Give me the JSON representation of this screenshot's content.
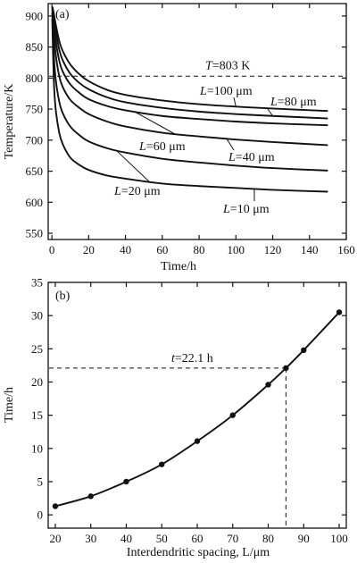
{
  "chart_data": [
    {
      "type": "line",
      "panel_label": "(a)",
      "xlabel": "Time/h",
      "ylabel": "Temperature/K",
      "xlim": [
        -2,
        160
      ],
      "ylim": [
        540,
        920
      ],
      "xticks": [
        0,
        20,
        40,
        60,
        80,
        100,
        120,
        140,
        160
      ],
      "yticks": [
        550,
        600,
        650,
        700,
        750,
        800,
        850,
        900
      ],
      "grid": false,
      "reference_line": {
        "axis": "y",
        "value": 803,
        "label": "T=803 K",
        "style": "dashed"
      },
      "series": [
        {
          "name": "L=100 μm",
          "x": [
            0.2,
            1,
            2,
            4,
            6,
            10,
            15,
            20,
            30,
            40,
            60,
            80,
            100,
            120,
            150
          ],
          "y": [
            915,
            905,
            888,
            860,
            843,
            822,
            806,
            795,
            781,
            773,
            764,
            758,
            754,
            751,
            747
          ]
        },
        {
          "name": "L=80 μm",
          "x": [
            0.2,
            1,
            2,
            4,
            6,
            10,
            15,
            20,
            30,
            40,
            60,
            80,
            100,
            120,
            150
          ],
          "y": [
            915,
            900,
            878,
            846,
            828,
            807,
            792,
            782,
            769,
            761,
            752,
            746,
            742,
            739,
            735
          ]
        },
        {
          "name": "L=60 μm",
          "x": [
            0.2,
            1,
            2,
            4,
            6,
            10,
            15,
            20,
            30,
            40,
            60,
            80,
            100,
            120,
            150
          ],
          "y": [
            915,
            890,
            862,
            828,
            810,
            790,
            776,
            766,
            755,
            748,
            739,
            734,
            730,
            727,
            724
          ]
        },
        {
          "name": "L=40 μm",
          "x": [
            0.2,
            1,
            2,
            4,
            6,
            10,
            15,
            20,
            30,
            40,
            60,
            80,
            100,
            120,
            150
          ],
          "y": [
            912,
            875,
            840,
            803,
            785,
            765,
            752,
            742,
            730,
            722,
            712,
            706,
            701,
            697,
            692
          ]
        },
        {
          "name": "L=20 μm",
          "x": [
            0.2,
            1,
            2,
            4,
            6,
            10,
            15,
            20,
            30,
            40,
            60,
            80,
            100,
            120,
            150
          ],
          "y": [
            905,
            842,
            800,
            762,
            743,
            722,
            708,
            698,
            687,
            680,
            670,
            664,
            659,
            655,
            651
          ]
        },
        {
          "name": "L=10 μm",
          "x": [
            0.2,
            1,
            2,
            4,
            6,
            10,
            15,
            20,
            30,
            40,
            60,
            80,
            100,
            120,
            150
          ],
          "y": [
            895,
            800,
            752,
            712,
            693,
            672,
            660,
            652,
            643,
            638,
            630,
            626,
            623,
            620,
            617
          ]
        }
      ]
    },
    {
      "type": "line",
      "panel_label": "(b)",
      "xlabel": "Interdendritic spacing, L/μm",
      "ylabel": "Time/h",
      "xlim": [
        18,
        102
      ],
      "ylim": [
        -2,
        35
      ],
      "xticks": [
        20,
        30,
        40,
        50,
        60,
        70,
        80,
        90,
        100
      ],
      "yticks": [
        0,
        5,
        10,
        15,
        20,
        25,
        30,
        35
      ],
      "grid": false,
      "markers": true,
      "x": [
        20,
        30,
        40,
        50,
        60,
        70,
        80,
        85,
        90,
        100
      ],
      "y": [
        1.3,
        2.8,
        5.0,
        7.6,
        11.1,
        15.0,
        19.6,
        22.1,
        24.8,
        30.5
      ],
      "annotation": {
        "label": "t=22.1 h",
        "x": 85,
        "y": 22.1,
        "style": "dashed"
      }
    }
  ]
}
